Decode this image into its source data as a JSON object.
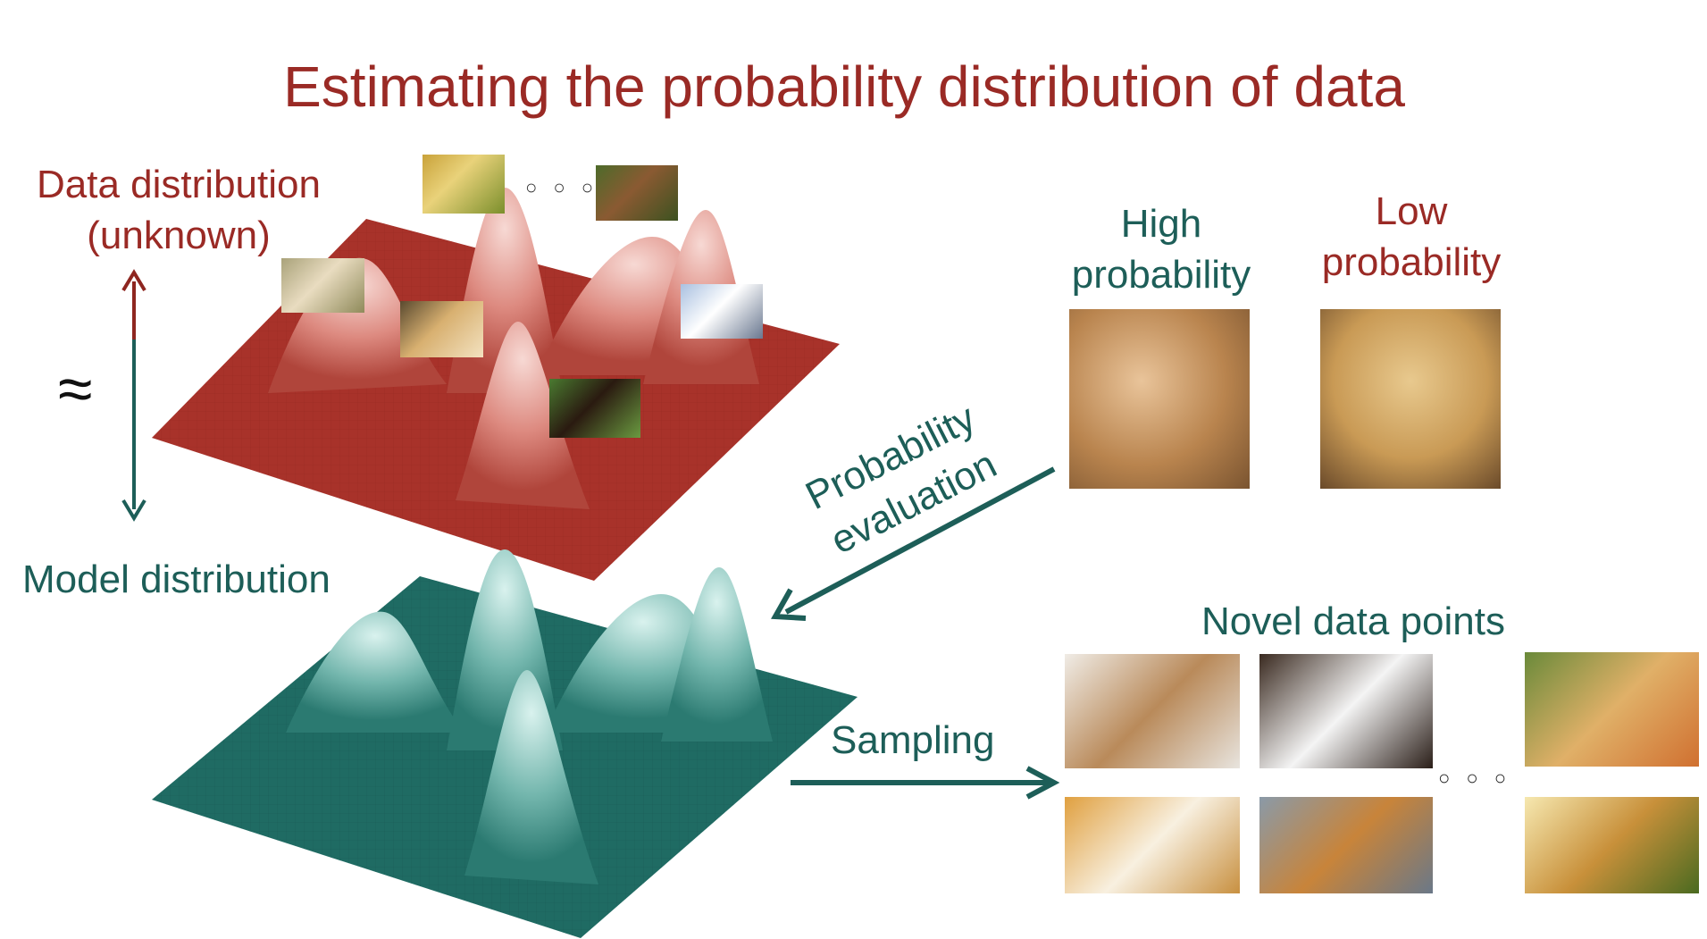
{
  "title": "Estimating the probability distribution of data",
  "labels": {
    "data_distribution": "Data distribution",
    "data_distribution_sub": "(unknown)",
    "model_distribution": "Model distribution",
    "approx_symbol": "≈",
    "high_probability_1": "High",
    "high_probability_2": "probability",
    "low_probability_1": "Low",
    "low_probability_2": "probability",
    "probability_evaluation_1": "Probability",
    "probability_evaluation_2": "evaluation",
    "sampling": "Sampling",
    "novel_data_points": "Novel data points",
    "ellipsis": "○ ○ ○"
  },
  "colors": {
    "title_red": "#9a2a25",
    "teal": "#1d5e58",
    "data_surface": "#a8322a",
    "model_surface": "#1f6b63"
  },
  "images": {
    "on_data_surface": [
      "pomeranian-photo",
      "brown-puppy-photo",
      "golden-puppy-running-photo",
      "golden-retriever-photo",
      "husky-photo",
      "rottweiler-photo"
    ],
    "evaluation": [
      "chihuahua-face-photo",
      "blueberry-muffin-photo"
    ],
    "novel_samples": [
      "cavapoo-photo",
      "white-dog-photo",
      "golden-puppy-grass-photo",
      "white-puppy-photo",
      "golden-puppy-rug-photo",
      "golden-retriever-lawn-photo"
    ]
  }
}
